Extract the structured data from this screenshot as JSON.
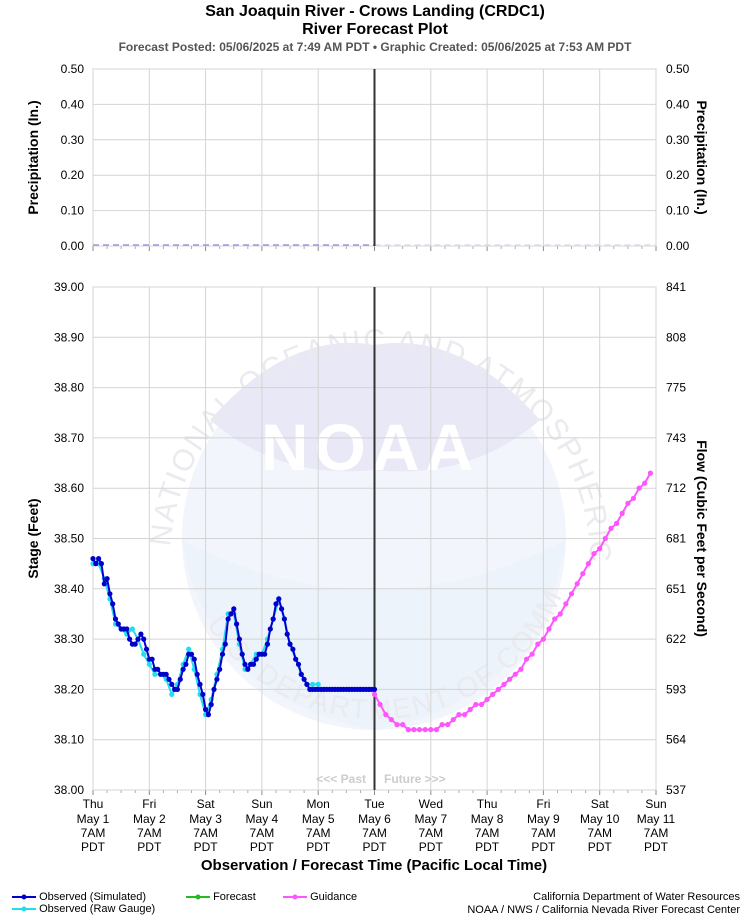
{
  "header": {
    "title": "San Joaquin River - Crows Landing (CRDC1)",
    "subtitle": "River Forecast Plot",
    "posted": "Forecast Posted: 05/06/2025 at 7:49 AM PDT  •  Graphic Created: 05/06/2025 at 7:53 AM PDT"
  },
  "watermark": {
    "logo_text": "NOAA",
    "ring_text": "NATIONAL OCEANIC AND ATMOSPHERIC ADMINISTRATION",
    "ring_text_bottom": "U.S. DEPARTMENT OF COMMERCE"
  },
  "past_future": {
    "past": "<<< Past",
    "future": "Future >>>"
  },
  "legend": {
    "observed_sim": "Observed (Simulated)",
    "observed_raw": "Observed (Raw Gauge)",
    "forecast": "Forecast",
    "guidance": "Guidance"
  },
  "credits": {
    "line1": "California Department of Water Resources",
    "line2": "NOAA / NWS / California Nevada River Forecast Center"
  },
  "colors": {
    "observed_sim": "#0000cc",
    "observed_raw": "#22ddee",
    "forecast": "#22bb22",
    "guidance": "#ff55ff",
    "precip": "#9999dd",
    "now_line": "#333333"
  },
  "chart_data": [
    {
      "type": "line",
      "name": "precipitation",
      "ylabel": "Precipitation (In.)",
      "ylabel_right": "Precipitation (In.)",
      "ylim": [
        0,
        0.5
      ],
      "yticks": [
        "0.00",
        "0.10",
        "0.20",
        "0.30",
        "0.40",
        "0.50"
      ],
      "grid": true,
      "values_all_zero_through": 5
    },
    {
      "type": "line",
      "name": "stage",
      "xlabel": "Observation / Forecast Time (Pacific Local Time)",
      "ylabel": "Stage (Feet)",
      "ylabel_right": "Flow (Cubic Feet per Second)",
      "ylim": [
        38.0,
        39.0
      ],
      "yticks": [
        "38.00",
        "38.10",
        "38.20",
        "38.30",
        "38.40",
        "38.50",
        "38.60",
        "38.70",
        "38.80",
        "38.90",
        "39.00"
      ],
      "yticks_right": [
        "537",
        "564",
        "593",
        "622",
        "651",
        "681",
        "712",
        "743",
        "775",
        "808",
        "841"
      ],
      "grid": true,
      "now_x": 5,
      "x_ticks": [
        {
          "day": "Thu",
          "date": "May 1",
          "time": "7AM",
          "tz": "PDT"
        },
        {
          "day": "Fri",
          "date": "May 2",
          "time": "7AM",
          "tz": "PDT"
        },
        {
          "day": "Sat",
          "date": "May 3",
          "time": "7AM",
          "tz": "PDT"
        },
        {
          "day": "Sun",
          "date": "May 4",
          "time": "7AM",
          "tz": "PDT"
        },
        {
          "day": "Mon",
          "date": "May 5",
          "time": "7AM",
          "tz": "PDT"
        },
        {
          "day": "Tue",
          "date": "May 6",
          "time": "7AM",
          "tz": "PDT"
        },
        {
          "day": "Wed",
          "date": "May 7",
          "time": "7AM",
          "tz": "PDT"
        },
        {
          "day": "Thu",
          "date": "May 8",
          "time": "7AM",
          "tz": "PDT"
        },
        {
          "day": "Fri",
          "date": "May 9",
          "time": "7AM",
          "tz": "PDT"
        },
        {
          "day": "Sat",
          "date": "May 10",
          "time": "7AM",
          "tz": "PDT"
        },
        {
          "day": "Sun",
          "date": "May 11",
          "time": "7AM",
          "tz": "PDT"
        }
      ],
      "series": [
        {
          "name": "Observed (Simulated)",
          "x": [
            0.0,
            0.05,
            0.1,
            0.15,
            0.2,
            0.25,
            0.3,
            0.35,
            0.4,
            0.45,
            0.5,
            0.55,
            0.6,
            0.65,
            0.7,
            0.75,
            0.8,
            0.85,
            0.9,
            0.95,
            1.0,
            1.05,
            1.1,
            1.15,
            1.2,
            1.25,
            1.3,
            1.35,
            1.4,
            1.45,
            1.5,
            1.55,
            1.6,
            1.65,
            1.7,
            1.75,
            1.8,
            1.85,
            1.9,
            1.95,
            2.0,
            2.05,
            2.1,
            2.15,
            2.2,
            2.25,
            2.3,
            2.35,
            2.4,
            2.45,
            2.5,
            2.55,
            2.6,
            2.65,
            2.7,
            2.75,
            2.8,
            2.85,
            2.9,
            2.95,
            3.0,
            3.05,
            3.1,
            3.15,
            3.2,
            3.25,
            3.3,
            3.35,
            3.4,
            3.45,
            3.5,
            3.55,
            3.6,
            3.65,
            3.7,
            3.75,
            3.8,
            3.85,
            3.9,
            3.95,
            4.0,
            4.05,
            4.1,
            4.15,
            4.2,
            4.25,
            4.3,
            4.35,
            4.4,
            4.45,
            4.5,
            4.55,
            4.6,
            4.65,
            4.7,
            4.75,
            4.8,
            4.85,
            4.9,
            4.95,
            5.0
          ],
          "values": [
            38.46,
            38.45,
            38.46,
            38.45,
            38.41,
            38.42,
            38.39,
            38.37,
            38.34,
            38.33,
            38.32,
            38.32,
            38.32,
            38.3,
            38.29,
            38.29,
            38.3,
            38.31,
            38.3,
            38.28,
            38.26,
            38.26,
            38.24,
            38.24,
            38.23,
            38.23,
            38.23,
            38.22,
            38.21,
            38.2,
            38.2,
            38.22,
            38.24,
            38.25,
            38.27,
            38.27,
            38.26,
            38.23,
            38.21,
            38.19,
            38.16,
            38.15,
            38.17,
            38.2,
            38.22,
            38.24,
            38.27,
            38.29,
            38.34,
            38.35,
            38.36,
            38.33,
            38.3,
            38.27,
            38.25,
            38.24,
            38.25,
            38.25,
            38.26,
            38.27,
            38.27,
            38.27,
            38.29,
            38.32,
            38.34,
            38.37,
            38.38,
            38.36,
            38.34,
            38.31,
            38.29,
            38.28,
            38.26,
            38.25,
            38.23,
            38.22,
            38.21,
            38.2,
            38.2,
            38.2,
            38.2,
            38.2,
            38.2,
            38.2,
            38.2,
            38.2,
            38.2,
            38.2,
            38.2,
            38.2,
            38.2,
            38.2,
            38.2,
            38.2,
            38.2,
            38.2,
            38.2,
            38.2,
            38.2,
            38.2,
            38.2
          ]
        },
        {
          "name": "Observed (Raw Gauge)",
          "x": [
            0.0,
            0.1,
            0.2,
            0.3,
            0.4,
            0.5,
            0.6,
            0.7,
            0.8,
            0.9,
            1.0,
            1.1,
            1.2,
            1.3,
            1.4,
            1.5,
            1.6,
            1.7,
            1.8,
            1.9,
            2.0,
            2.1,
            2.2,
            2.3,
            2.4,
            2.5,
            2.6,
            2.7,
            2.8,
            2.9,
            3.0,
            3.1,
            3.2,
            3.3,
            3.4,
            3.5,
            3.6,
            3.7,
            3.8,
            3.9,
            4.0
          ],
          "values": [
            38.45,
            38.45,
            38.42,
            38.38,
            38.33,
            38.32,
            38.31,
            38.32,
            38.3,
            38.27,
            38.25,
            38.23,
            38.23,
            38.22,
            38.19,
            38.21,
            38.25,
            38.28,
            38.24,
            38.19,
            38.15,
            38.18,
            38.23,
            38.28,
            38.35,
            38.35,
            38.29,
            38.24,
            38.25,
            38.27,
            38.27,
            38.3,
            38.34,
            38.38,
            38.34,
            38.29,
            38.26,
            38.23,
            38.21,
            38.21,
            38.21
          ]
        },
        {
          "name": "Guidance",
          "x": [
            5.0,
            5.1,
            5.2,
            5.3,
            5.4,
            5.5,
            5.6,
            5.7,
            5.8,
            5.9,
            6.0,
            6.1,
            6.2,
            6.3,
            6.4,
            6.5,
            6.6,
            6.7,
            6.8,
            6.9,
            7.0,
            7.1,
            7.2,
            7.3,
            7.4,
            7.5,
            7.6,
            7.7,
            7.8,
            7.9,
            8.0,
            8.1,
            8.2,
            8.3,
            8.4,
            8.5,
            8.6,
            8.7,
            8.8,
            8.9,
            9.0,
            9.1,
            9.2,
            9.3,
            9.4,
            9.5,
            9.6,
            9.7,
            9.8,
            9.9
          ],
          "values": [
            38.19,
            38.17,
            38.15,
            38.14,
            38.13,
            38.13,
            38.12,
            38.12,
            38.12,
            38.12,
            38.12,
            38.12,
            38.13,
            38.13,
            38.14,
            38.15,
            38.15,
            38.16,
            38.17,
            38.17,
            38.18,
            38.19,
            38.2,
            38.21,
            38.22,
            38.23,
            38.24,
            38.26,
            38.27,
            38.29,
            38.3,
            38.32,
            38.34,
            38.35,
            38.37,
            38.39,
            38.41,
            38.43,
            38.45,
            38.47,
            38.48,
            38.5,
            38.52,
            38.53,
            38.55,
            38.57,
            38.58,
            38.6,
            38.61,
            38.63
          ]
        }
      ]
    }
  ]
}
